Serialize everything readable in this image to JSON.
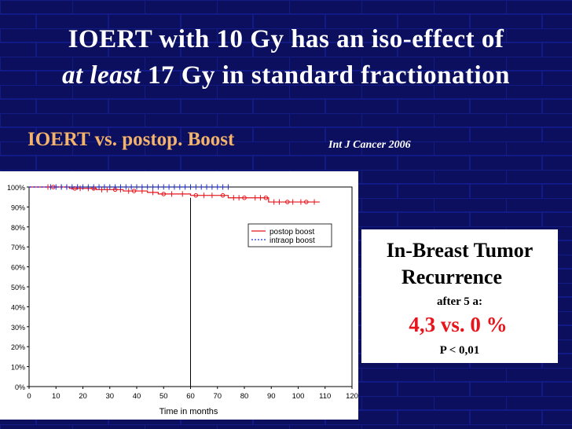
{
  "slide": {
    "title_line1": "IOERT with 10 Gy has an iso-effect of",
    "title_line2_italic": "at least",
    "title_line2_rest": " 17 Gy in standard fractionation",
    "subtitle": "IOERT vs. postop. Boost",
    "citation": "Int J Cancer 2006"
  },
  "info_box": {
    "heading_line1": "In-Breast Tumor",
    "heading_line2": "Recurrence",
    "sub": "after 5 a:",
    "value": "4,3 vs. 0 %",
    "p_value": "P < 0,01"
  },
  "colors": {
    "background": "#0b0f5e",
    "accent": "#f3b36a",
    "postop": "#e8141b",
    "intraop": "#1f2fd0"
  },
  "chart_data": {
    "type": "line",
    "title": "",
    "xlabel": "Time in months",
    "ylabel": "",
    "xlim": [
      0,
      120
    ],
    "ylim": [
      0,
      100
    ],
    "x_ticks": [
      "0",
      "10",
      "20",
      "30",
      "40",
      "50",
      "60",
      "70",
      "80",
      "90",
      "100",
      "110",
      "120"
    ],
    "y_ticks": [
      "0%",
      "10%",
      "20%",
      "30%",
      "40%",
      "50%",
      "60%",
      "70%",
      "80%",
      "90%",
      "100%"
    ],
    "legend_position": "right",
    "reference_line_x": 60,
    "series": [
      {
        "name": "postop boost",
        "line_style": "solid",
        "color": "#e8141b",
        "x": [
          0,
          10,
          15,
          20,
          25,
          30,
          35,
          40,
          44,
          48,
          55,
          60,
          70,
          74,
          82,
          89,
          95,
          100,
          108
        ],
        "y": [
          100,
          100,
          99.3,
          99.3,
          98.7,
          98.7,
          98.0,
          98.0,
          97.3,
          96.5,
          96.5,
          95.8,
          95.8,
          94.6,
          94.6,
          92.5,
          92.5,
          92.5,
          92.5
        ],
        "censor_x": [
          7,
          9,
          12,
          14,
          17,
          19,
          22,
          24,
          27,
          29,
          32,
          34,
          37,
          39,
          42,
          46,
          50,
          53,
          57,
          62,
          65,
          68,
          72,
          76,
          78,
          80,
          84,
          86,
          88,
          91,
          93,
          96,
          98,
          101,
          103,
          106
        ]
      },
      {
        "name": "intraop boost",
        "line_style": "dashed",
        "color": "#1f2fd0",
        "x": [
          0,
          74
        ],
        "y": [
          100,
          100
        ],
        "censor_x": [
          8,
          10,
          12,
          14,
          16,
          18,
          20,
          22,
          24,
          26,
          28,
          30,
          32,
          34,
          36,
          38,
          40,
          42,
          44,
          46,
          48,
          50,
          52,
          54,
          56,
          58,
          60,
          62,
          64,
          66,
          68,
          70,
          72,
          74
        ]
      }
    ]
  }
}
